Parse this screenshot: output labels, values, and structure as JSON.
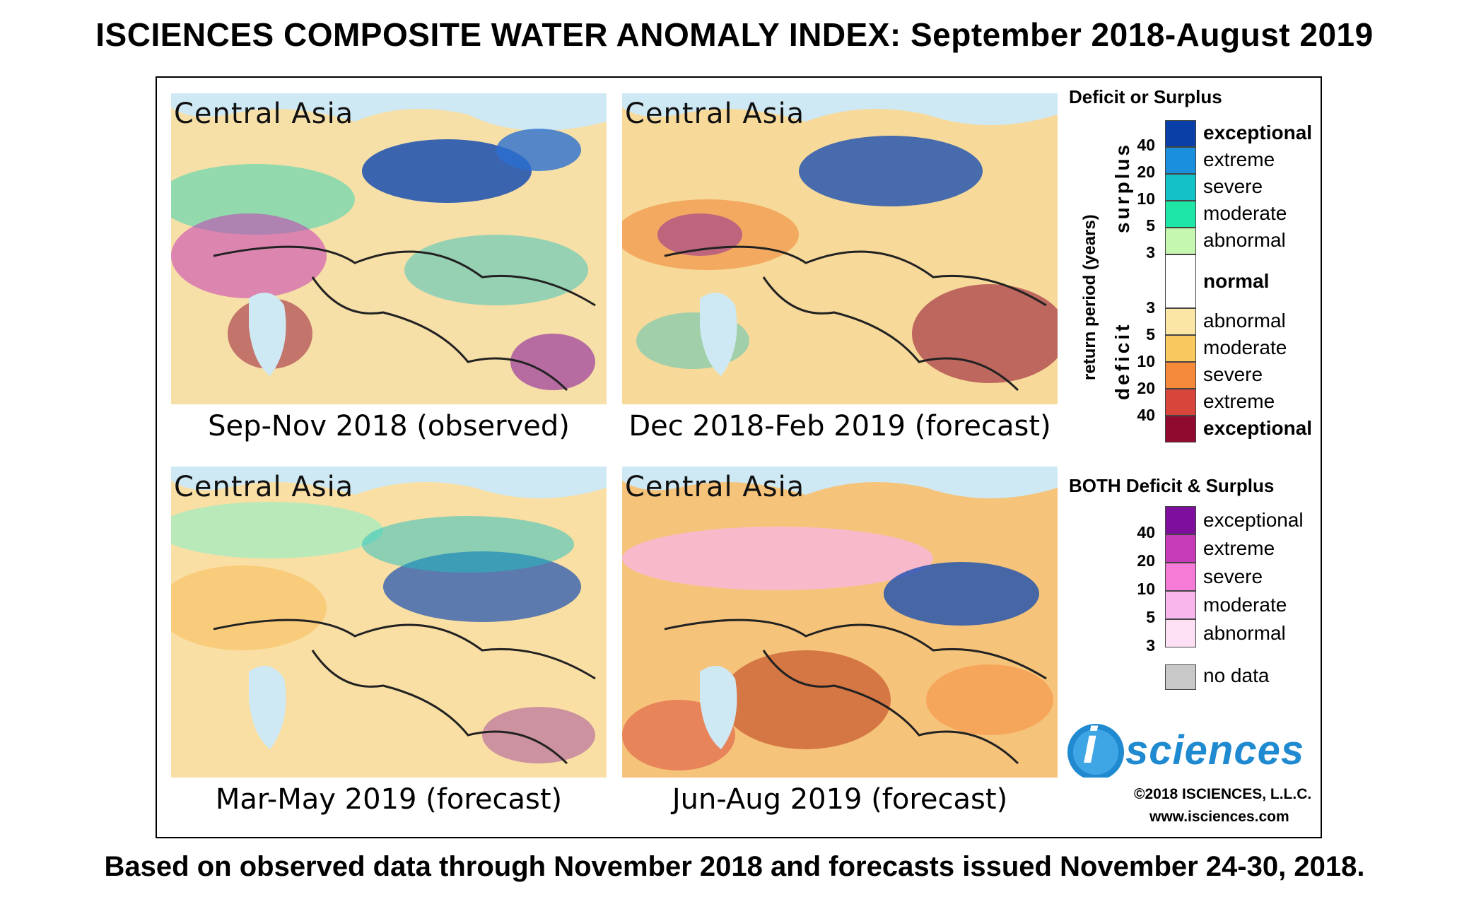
{
  "title": "ISCIENCES COMPOSITE WATER ANOMALY INDEX: September 2018-August 2019",
  "footer": "Based on observed data through November 2018 and forecasts issued November 24-30, 2018.",
  "panels": [
    {
      "region": "Central Asia",
      "caption": "Sep-Nov 2018 (observed)"
    },
    {
      "region": "Central Asia",
      "caption": "Dec 2018-Feb 2019 (forecast)"
    },
    {
      "region": "Central Asia",
      "caption": "Mar-May 2019 (forecast)"
    },
    {
      "region": "Central Asia",
      "caption": "Jun-Aug 2019 (forecast)"
    }
  ],
  "legend": {
    "heading": "Deficit or Surplus",
    "axis_label": "return period (years)",
    "surplus_label": "surplus",
    "deficit_label": "deficit",
    "surplus": [
      {
        "label": "exceptional",
        "color": "#0a3fa8",
        "bold": true
      },
      {
        "label": "extreme",
        "color": "#1a8fde",
        "bold": false
      },
      {
        "label": "severe",
        "color": "#13c1c8",
        "bold": false
      },
      {
        "label": "moderate",
        "color": "#1ee6a6",
        "bold": false
      },
      {
        "label": "abnormal",
        "color": "#c6f7b0",
        "bold": false
      }
    ],
    "surplus_ticks": [
      "40",
      "20",
      "10",
      "5",
      "3"
    ],
    "normal": {
      "label": "normal",
      "color": "#ffffff"
    },
    "deficit": [
      {
        "label": "abnormal",
        "color": "#fbe6a6",
        "bold": false
      },
      {
        "label": "moderate",
        "color": "#f9c85e",
        "bold": false
      },
      {
        "label": "severe",
        "color": "#f58a3a",
        "bold": false
      },
      {
        "label": "extreme",
        "color": "#d8453a",
        "bold": false
      },
      {
        "label": "exceptional",
        "color": "#8f0a2e",
        "bold": true
      }
    ],
    "deficit_ticks": [
      "3",
      "5",
      "10",
      "20",
      "40"
    ],
    "both_heading": "BOTH Deficit & Surplus",
    "both": [
      {
        "label": "exceptional",
        "color": "#7d0f9c"
      },
      {
        "label": "extreme",
        "color": "#c63bb8"
      },
      {
        "label": "severe",
        "color": "#f57bd6"
      },
      {
        "label": "moderate",
        "color": "#f9b6ec"
      },
      {
        "label": "abnormal",
        "color": "#fde0f4"
      }
    ],
    "both_ticks": [
      "40",
      "20",
      "10",
      "5",
      "3"
    ],
    "no_data": {
      "label": "no data",
      "color": "#c8c8c8"
    }
  },
  "logo": {
    "text": "sciences",
    "mark": "i"
  },
  "copyright": "©2018 ISCIENCES, L.L.C.",
  "website": "www.isciences.com"
}
